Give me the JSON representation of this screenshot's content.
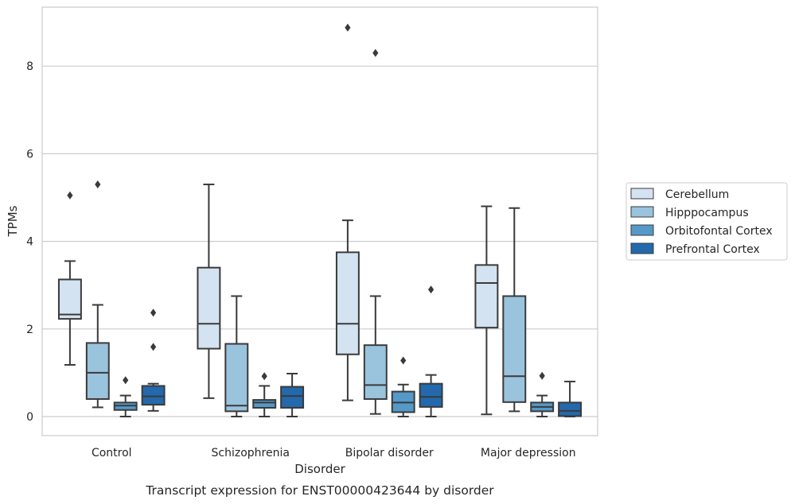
{
  "chart_data": {
    "type": "boxplot",
    "title": "Transcript expression for ENST00000423644 by disorder",
    "xlabel": "Disorder",
    "ylabel": "TPMs",
    "ylim": [
      -0.45,
      9.3
    ],
    "yticks": [
      0,
      2,
      4,
      6,
      8
    ],
    "grid": "horizontal",
    "legend_position": "right",
    "categories": [
      "Control",
      "Schizophrenia",
      "Bipolar disorder",
      "Major depression"
    ],
    "series": [
      {
        "name": "Cerebellum",
        "color": "#d4e3f1",
        "boxes": [
          {
            "whislo": 1.18,
            "q1": 2.23,
            "med": 2.33,
            "q3": 3.13,
            "whishi": 3.55,
            "fliers": [
              5.05
            ]
          },
          {
            "whislo": 0.42,
            "q1": 1.55,
            "med": 2.12,
            "q3": 3.4,
            "whishi": 5.3,
            "fliers": []
          },
          {
            "whislo": 0.37,
            "q1": 1.42,
            "med": 2.12,
            "q3": 3.75,
            "whishi": 4.48,
            "fliers": [
              8.88
            ]
          },
          {
            "whislo": 0.05,
            "q1": 2.03,
            "med": 3.05,
            "q3": 3.46,
            "whishi": 4.8,
            "fliers": []
          }
        ]
      },
      {
        "name": "Hipppocampus",
        "color": "#9ac3dd",
        "boxes": [
          {
            "whislo": 0.21,
            "q1": 0.4,
            "med": 1.0,
            "q3": 1.68,
            "whishi": 2.55,
            "fliers": [
              5.3
            ]
          },
          {
            "whislo": 0.0,
            "q1": 0.12,
            "med": 0.25,
            "q3": 1.66,
            "whishi": 2.75,
            "fliers": []
          },
          {
            "whislo": 0.06,
            "q1": 0.4,
            "med": 0.72,
            "q3": 1.63,
            "whishi": 2.75,
            "fliers": [
              8.3
            ]
          },
          {
            "whislo": 0.12,
            "q1": 0.33,
            "med": 0.92,
            "q3": 2.75,
            "whishi": 4.76,
            "fliers": []
          }
        ]
      },
      {
        "name": "Orbitofontal Cortex",
        "color": "#5499c8",
        "boxes": [
          {
            "whislo": 0.0,
            "q1": 0.15,
            "med": 0.25,
            "q3": 0.32,
            "whishi": 0.48,
            "fliers": [
              0.83
            ]
          },
          {
            "whislo": 0.0,
            "q1": 0.2,
            "med": 0.32,
            "q3": 0.38,
            "whishi": 0.7,
            "fliers": [
              0.92
            ]
          },
          {
            "whislo": 0.0,
            "q1": 0.1,
            "med": 0.32,
            "q3": 0.57,
            "whishi": 0.73,
            "fliers": [
              1.28
            ]
          },
          {
            "whislo": 0.0,
            "q1": 0.12,
            "med": 0.22,
            "q3": 0.32,
            "whishi": 0.48,
            "fliers": [
              0.93
            ]
          }
        ]
      },
      {
        "name": "Prefrontal Cortex",
        "color": "#2369ac",
        "boxes": [
          {
            "whislo": 0.13,
            "q1": 0.27,
            "med": 0.46,
            "q3": 0.7,
            "whishi": 0.75,
            "fliers": [
              1.59,
              2.37
            ]
          },
          {
            "whislo": 0.0,
            "q1": 0.2,
            "med": 0.47,
            "q3": 0.68,
            "whishi": 0.98,
            "fliers": []
          },
          {
            "whislo": 0.0,
            "q1": 0.22,
            "med": 0.45,
            "q3": 0.75,
            "whishi": 0.95,
            "fliers": [
              2.9
            ]
          },
          {
            "whislo": 0.0,
            "q1": 0.01,
            "med": 0.13,
            "q3": 0.32,
            "whishi": 0.8,
            "fliers": []
          }
        ]
      }
    ]
  }
}
